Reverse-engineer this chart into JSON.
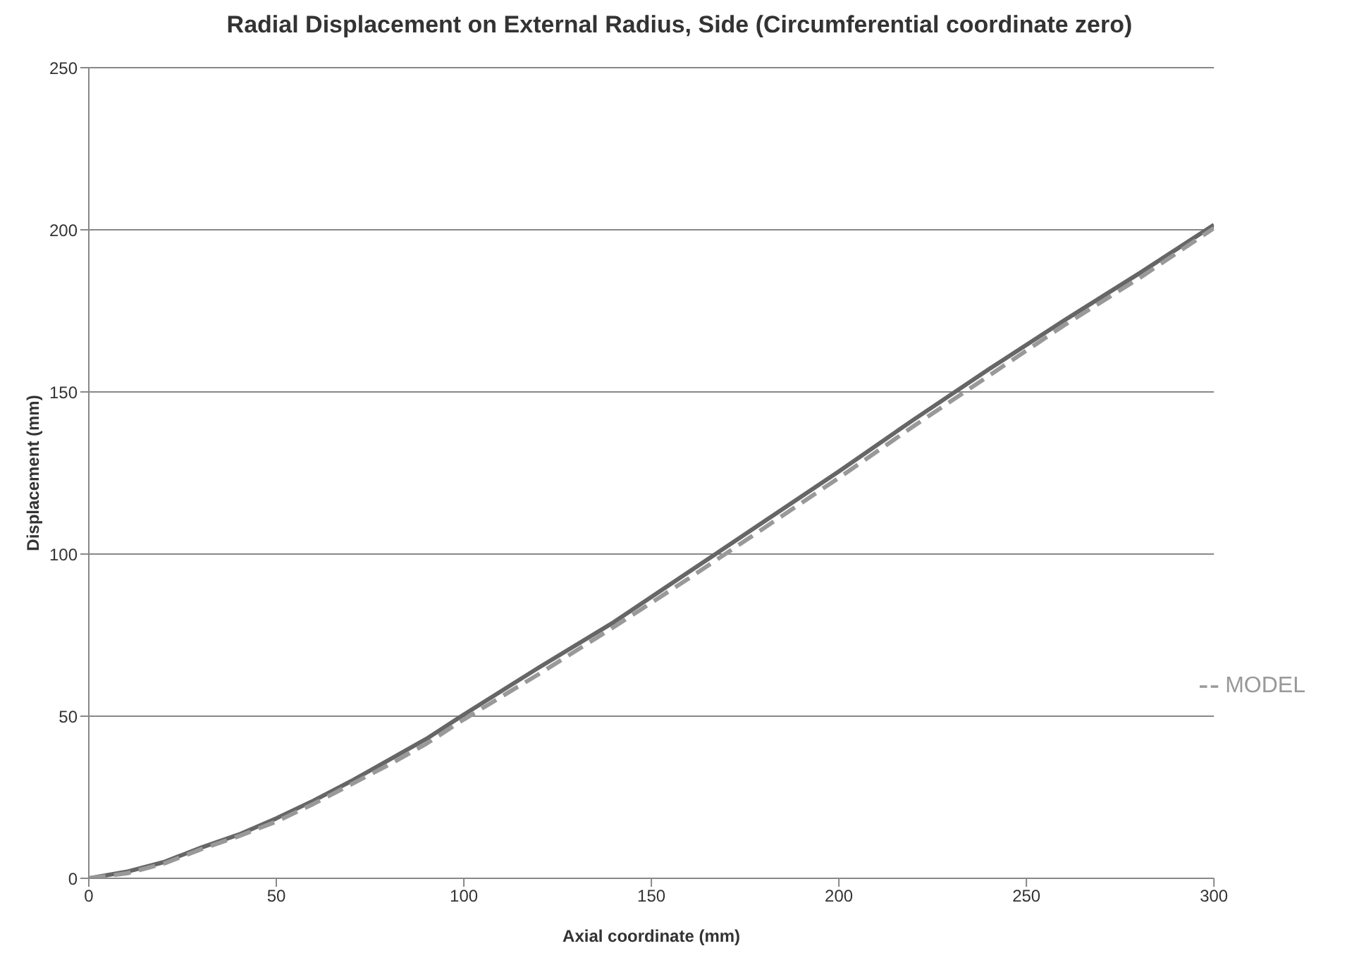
{
  "chart_data": {
    "type": "line",
    "title": "Radial Displacement on External Radius, Side (Circumferential coordinate zero)",
    "xlabel": "Axial coordinate (mm)",
    "ylabel": "Displacement (mm)",
    "x": [
      0,
      10,
      20,
      30,
      40,
      50,
      60,
      70,
      80,
      90,
      100,
      120,
      140,
      160,
      180,
      200,
      220,
      240,
      260,
      280,
      300
    ],
    "series": [
      {
        "color": "#666666",
        "line_style": "solid",
        "values": [
          0,
          2,
          5,
          9.5,
          13.5,
          18.5,
          24,
          30,
          36.5,
          43,
          50.5,
          65,
          79,
          94.5,
          110,
          125.5,
          141.5,
          157,
          172,
          186.5,
          201.5
        ]
      },
      {
        "name": "MODEL",
        "color": "#999999",
        "line_style": "dashed",
        "values": [
          0,
          1.5,
          4.5,
          9,
          13,
          17.5,
          23,
          29,
          35,
          41.5,
          49,
          63,
          77.5,
          92.5,
          108,
          123.5,
          139.5,
          155,
          170.5,
          185,
          200.5
        ]
      }
    ],
    "xlim": [
      0,
      300
    ],
    "xticks": [
      0,
      50,
      100,
      150,
      200,
      250,
      300
    ],
    "ylim": [
      0,
      250
    ],
    "yticks": [
      0,
      50,
      100,
      150,
      200,
      250
    ],
    "grid": "y",
    "legend": "right",
    "marker": "none"
  }
}
